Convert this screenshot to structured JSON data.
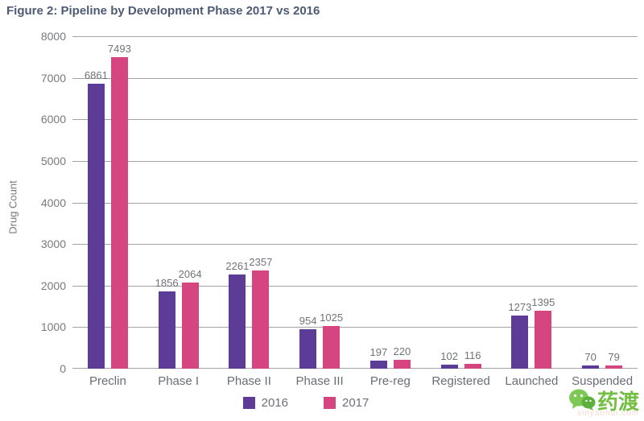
{
  "title": "Figure 2: Pipeline by Development Phase 2017 vs 2016",
  "colors": {
    "title_text": "#4d5a74",
    "axis_text": "#77797c",
    "gridline": "#a2a4a7",
    "series_2016": "#5c3c96",
    "series_2017": "#d5457f",
    "watermark_green": "#72bf44"
  },
  "chart_data": {
    "type": "bar",
    "title": "Figure 2: Pipeline by Development Phase 2017 vs 2016",
    "categories": [
      "Preclin",
      "Phase I",
      "Phase II",
      "Phase III",
      "Pre-reg",
      "Registered",
      "Launched",
      "Suspended"
    ],
    "series": [
      {
        "name": "2016",
        "color": "#5c3c96",
        "values": [
          6861,
          1856,
          2261,
          954,
          197,
          102,
          1273,
          70
        ]
      },
      {
        "name": "2017",
        "color": "#d5457f",
        "values": [
          7493,
          2064,
          2357,
          1025,
          220,
          116,
          1395,
          79
        ]
      }
    ],
    "xlabel": "",
    "ylabel": "Drug Count",
    "ylim": [
      0,
      8000
    ],
    "ytick_step": 1000,
    "grid": true,
    "data_labels": true,
    "legend_position": "bottom",
    "legend": [
      "2016",
      "2017"
    ]
  },
  "watermark": {
    "brand": "药渡",
    "caption": "xinyaohui.com"
  }
}
